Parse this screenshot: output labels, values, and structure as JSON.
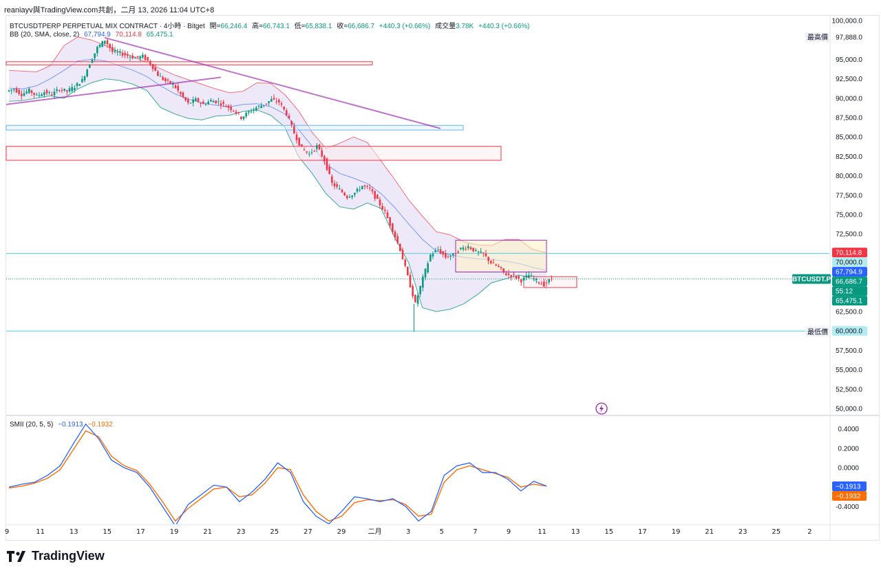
{
  "header": {
    "shared_by": "reaniayv與TradingView.com共創，二月 13, 2026 11:04 UTC+8"
  },
  "symbol_legend": {
    "title": "BTCUSDTPERP PERPETUAL MIX CONTRACT · 4小時 · Bitget",
    "open_label": "開=",
    "open": "66,246.4",
    "high_label": "高=",
    "high": "66,743.1",
    "low_label": "低=",
    "low": "65,838.1",
    "close_label": "收=",
    "close": "66,686.7",
    "change": "+440.3 (+0.66%)",
    "volume_label": "成交量",
    "volume": "3.78K",
    "volume_change": "+440.3 (+0.66%)"
  },
  "bb_legend": {
    "label": "BB (20, SMA, close, 2)",
    "basis": "67,794.9",
    "upper": "70,114.8",
    "lower": "65,475.1"
  },
  "smii_legend": {
    "label": "SMII (20, 5, 5)",
    "smii": "−0.1913",
    "signal": "−0.1932"
  },
  "price_scale": {
    "ticks": [
      100000,
      97500,
      95000,
      92500,
      90000,
      87500,
      85000,
      82500,
      80000,
      77500,
      75000,
      72500,
      70000,
      67500,
      65000,
      62500,
      60000,
      57500,
      55000,
      52500,
      50000
    ],
    "tick_labels": [
      "100,000.0",
      "",
      "95,000.0",
      "92,500.0",
      "90,000.0",
      "87,500.0",
      "85,000.0",
      "82,500.0",
      "80,000.0",
      "77,500.0",
      "75,000.0",
      "72,500.0",
      "",
      "",
      "",
      "62,500.0",
      "",
      "57,500.0",
      "55,000.0",
      "52,500.0",
      "50,000.0"
    ],
    "high_tag": {
      "label": "最高價",
      "value": "97,888.0"
    },
    "low_tag": {
      "label": "最低價",
      "value": "59,900.5"
    },
    "badges": [
      {
        "text": "70,114.8",
        "color": "#f23645",
        "value": 70114.8
      },
      {
        "text": "70,000.0",
        "color": "#b2ebf2",
        "text_color": "#131722",
        "value": 70000
      },
      {
        "text": "67,794.9",
        "color": "#2962ff",
        "value": 67794.9
      },
      {
        "text": "66,686.7",
        "color": "#089981",
        "value": 66686.7
      },
      {
        "text": "55:12",
        "color": "#089981",
        "value": 65900
      },
      {
        "text": "65,475.1",
        "color": "#089981",
        "value": 65475.1
      },
      {
        "text": "60,000.0",
        "color": "#b2ebf2",
        "text_color": "#131722",
        "value": 60000
      }
    ],
    "symbol_tag": "BTCUSDT.P"
  },
  "smii_scale": {
    "ticks": [
      0.4,
      0.2,
      0.0,
      -0.2,
      -0.4
    ],
    "tick_labels": [
      "0.4000",
      "0.2000",
      "0.0000",
      "",
      "-0.4000"
    ],
    "badges": [
      {
        "text": "−0.1913",
        "color": "#2962ff",
        "value": -0.1913
      },
      {
        "text": "−0.1932",
        "color": "#ff6d00",
        "value": -0.1932
      }
    ]
  },
  "time_axis": {
    "labels": [
      "9",
      "11",
      "13",
      "15",
      "17",
      "19",
      "21",
      "23",
      "25",
      "27",
      "29",
      "二月",
      "3",
      "5",
      "7",
      "9",
      "11",
      "13",
      "15",
      "17",
      "19",
      "21",
      "23",
      "25",
      "2"
    ]
  },
  "colors": {
    "up": "#089981",
    "down": "#f23645",
    "bb_basis": "#2962ff",
    "bb_upper": "#f23645",
    "bb_lower": "#089981",
    "bb_fill": "#e8e2f6",
    "trendline": "#9c27b0",
    "smii": "#2962ff",
    "signal": "#ff6d00"
  },
  "chart_data": {
    "type": "candlestick",
    "timeframe": "4小時",
    "y_range": [
      50000,
      100000
    ],
    "x_dates": [
      "9",
      "11",
      "13",
      "15",
      "17",
      "19",
      "21",
      "23",
      "25",
      "27",
      "29",
      "二月",
      "3",
      "5",
      "7",
      "9",
      "11",
      "13"
    ],
    "price_path": [
      [
        0,
        91200
      ],
      [
        1,
        90500
      ],
      [
        2,
        91000
      ],
      [
        3,
        90300
      ],
      [
        4,
        90800
      ],
      [
        5,
        90500
      ],
      [
        6,
        91200
      ],
      [
        7,
        90900
      ],
      [
        8,
        91500
      ],
      [
        9,
        92300
      ],
      [
        10,
        94500
      ],
      [
        11,
        96500
      ],
      [
        12,
        97500
      ],
      [
        13,
        96000
      ],
      [
        14,
        95800
      ],
      [
        15,
        95500
      ],
      [
        16,
        95200
      ],
      [
        17,
        95400
      ],
      [
        18,
        94500
      ],
      [
        19,
        93000
      ],
      [
        20,
        92200
      ],
      [
        21,
        91800
      ],
      [
        22,
        90500
      ],
      [
        23,
        89300
      ],
      [
        24,
        89800
      ],
      [
        25,
        89200
      ],
      [
        26,
        89700
      ],
      [
        27,
        89500
      ],
      [
        28,
        89000
      ],
      [
        29,
        88500
      ],
      [
        30,
        87500
      ],
      [
        31,
        88200
      ],
      [
        32,
        88800
      ],
      [
        33,
        89200
      ],
      [
        34,
        89800
      ],
      [
        35,
        89500
      ],
      [
        36,
        88000
      ],
      [
        37,
        85500
      ],
      [
        38,
        83500
      ],
      [
        39,
        82800
      ],
      [
        40,
        83800
      ],
      [
        41,
        82000
      ],
      [
        42,
        79000
      ],
      [
        43,
        78200
      ],
      [
        44,
        77300
      ],
      [
        45,
        77800
      ],
      [
        46,
        78700
      ],
      [
        47,
        78300
      ],
      [
        48,
        76800
      ],
      [
        49,
        75300
      ],
      [
        50,
        73000
      ],
      [
        51,
        70500
      ],
      [
        52,
        67000
      ],
      [
        53,
        63500
      ],
      [
        54,
        66800
      ],
      [
        55,
        69800
      ],
      [
        56,
        70500
      ],
      [
        57,
        69500
      ],
      [
        58,
        69800
      ],
      [
        59,
        70600
      ],
      [
        60,
        70900
      ],
      [
        61,
        70200
      ],
      [
        62,
        69900
      ],
      [
        63,
        68800
      ],
      [
        64,
        68200
      ],
      [
        65,
        67300
      ],
      [
        66,
        67100
      ],
      [
        67,
        66500
      ],
      [
        68,
        67200
      ],
      [
        69,
        66500
      ],
      [
        70,
        66000
      ],
      [
        71,
        66700
      ]
    ],
    "bb_upper": [
      93600,
      93500,
      93400,
      94200,
      96800,
      97900,
      97500,
      96800,
      96000,
      95400,
      94600,
      93800,
      93000,
      92400,
      91800,
      91200,
      90700,
      90900,
      92000,
      91900,
      90500,
      88400,
      85600,
      83500,
      84200,
      85000,
      84300,
      81900,
      79500,
      76900,
      74800,
      72800,
      72400,
      71500,
      71100,
      71000,
      71800,
      71800,
      70500,
      70100
    ],
    "bb_basis": [
      91300,
      91200,
      91600,
      92500,
      93600,
      94800,
      95000,
      94800,
      94200,
      93600,
      92800,
      91600,
      90600,
      89900,
      89400,
      89100,
      88900,
      89200,
      89300,
      88900,
      88000,
      86000,
      83800,
      81500,
      80300,
      79700,
      79000,
      77700,
      75900,
      73800,
      71800,
      70300,
      69800,
      69500,
      69300,
      69200,
      69000,
      68700,
      68200,
      67800
    ],
    "bb_lower": [
      89600,
      89700,
      90000,
      90300,
      90000,
      91200,
      92000,
      92500,
      92300,
      91800,
      91000,
      88800,
      88000,
      87400,
      87200,
      87700,
      87800,
      88300,
      88500,
      87800,
      86300,
      82500,
      80300,
      77700,
      76000,
      75700,
      76500,
      75800,
      72000,
      68800,
      63000,
      62500,
      62800,
      63500,
      64700,
      66200,
      66700,
      67200,
      66700,
      65500
    ],
    "trendlines": [
      {
        "from": [
          0,
          89200
        ],
        "to": [
          28,
          92700
        ]
      },
      {
        "from": [
          13,
          97800
        ],
        "to": [
          57,
          86100
        ]
      }
    ],
    "zones": [
      {
        "name": "resistance-95k",
        "from": [
          0,
          94300
        ],
        "to": [
          48,
          94700
        ],
        "color": "#f23645"
      },
      {
        "name": "support-86k",
        "from": [
          0,
          85900
        ],
        "to": [
          60,
          86500
        ],
        "color": "#64b5f6"
      },
      {
        "name": "supply-83k",
        "from": [
          0,
          82000
        ],
        "to": [
          65,
          83800
        ],
        "color": "#f23645"
      },
      {
        "name": "range-box",
        "from": [
          59,
          67600
        ],
        "to": [
          71,
          71700
        ],
        "color": "#9c27b0"
      },
      {
        "name": "small-box",
        "from": [
          68,
          65600
        ],
        "to": [
          75,
          67000
        ],
        "color": "#f23645"
      }
    ],
    "horizontal_levels": [
      70000,
      60000
    ],
    "smii": [
      -0.2,
      -0.17,
      -0.15,
      -0.08,
      0.02,
      0.24,
      0.45,
      0.3,
      0.08,
      0.0,
      -0.05,
      -0.2,
      -0.4,
      -0.6,
      -0.38,
      -0.28,
      -0.18,
      -0.2,
      -0.35,
      -0.25,
      -0.12,
      0.05,
      -0.05,
      -0.35,
      -0.5,
      -0.58,
      -0.45,
      -0.3,
      -0.32,
      -0.35,
      -0.32,
      -0.4,
      -0.55,
      -0.45,
      -0.08,
      0.02,
      0.05,
      -0.05,
      -0.05,
      -0.12,
      -0.24,
      -0.14,
      -0.19
    ],
    "signal": [
      -0.21,
      -0.19,
      -0.16,
      -0.11,
      -0.02,
      0.18,
      0.38,
      0.32,
      0.12,
      0.02,
      -0.03,
      -0.17,
      -0.35,
      -0.55,
      -0.42,
      -0.32,
      -0.22,
      -0.2,
      -0.3,
      -0.28,
      -0.16,
      0.0,
      -0.02,
      -0.28,
      -0.45,
      -0.55,
      -0.5,
      -0.36,
      -0.33,
      -0.34,
      -0.33,
      -0.38,
      -0.5,
      -0.48,
      -0.15,
      -0.02,
      0.02,
      -0.02,
      -0.06,
      -0.1,
      -0.2,
      -0.17,
      -0.19
    ],
    "smii_range": [
      -0.5,
      0.5
    ]
  }
}
